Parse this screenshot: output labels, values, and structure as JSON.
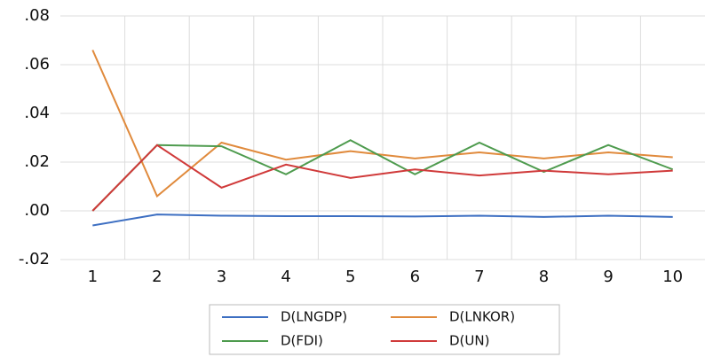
{
  "chart_data": {
    "type": "line",
    "categories": [
      "1",
      "2",
      "3",
      "4",
      "5",
      "6",
      "7",
      "8",
      "9",
      "10"
    ],
    "series": [
      {
        "name": "D(LNGDP)",
        "color": "#3d6fc2",
        "values": [
          -0.006,
          -0.0015,
          -0.002,
          -0.0022,
          -0.0022,
          -0.0023,
          -0.002,
          -0.0025,
          -0.002,
          -0.0025
        ]
      },
      {
        "name": "D(LNKOR)",
        "color": "#e08a3c",
        "values": [
          0.066,
          0.006,
          0.028,
          0.021,
          0.0245,
          0.0215,
          0.024,
          0.0215,
          0.024,
          0.022
        ]
      },
      {
        "name": "D(FDI)",
        "color": "#4e9b4e",
        "values": [
          0,
          0.027,
          0.0265,
          0.015,
          0.029,
          0.015,
          0.028,
          0.016,
          0.027,
          0.017
        ]
      },
      {
        "name": "D(UN)",
        "color": "#d03a3a",
        "values": [
          0,
          0.027,
          0.0095,
          0.019,
          0.0135,
          0.017,
          0.0145,
          0.0165,
          0.015,
          0.0165
        ]
      }
    ],
    "ylim": [
      -0.02,
      0.08
    ],
    "yticks": [
      {
        "value": -0.02,
        "label": "-.02"
      },
      {
        "value": 0,
        "label": ".00"
      },
      {
        "value": 0.02,
        "label": ".02"
      },
      {
        "value": 0.04,
        "label": ".04"
      },
      {
        "value": 0.06,
        "label": ".06"
      },
      {
        "value": 0.08,
        "label": ".08"
      }
    ],
    "grid": true,
    "legend": "bottom"
  }
}
